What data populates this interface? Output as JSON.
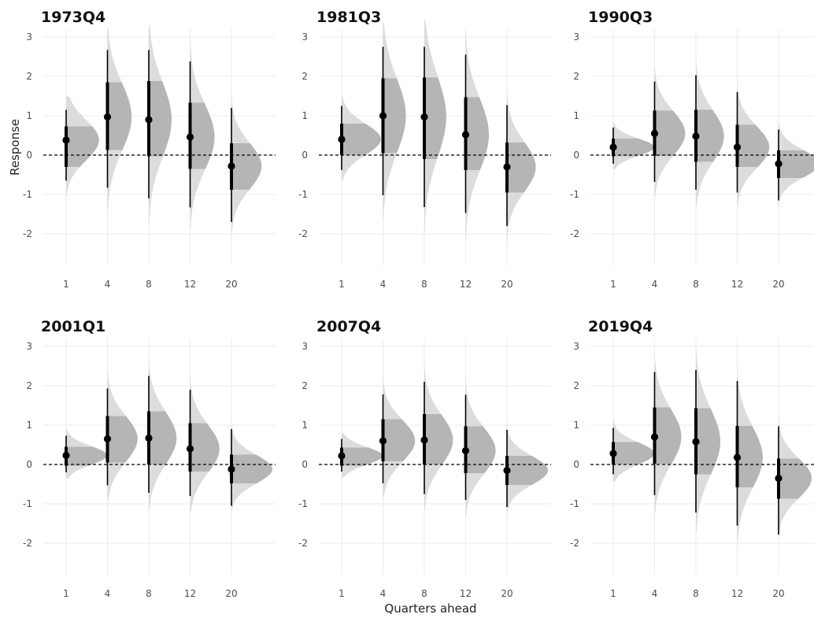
{
  "chart_data": {
    "type": "halfeye",
    "xlabel": "Quarters ahead",
    "ylabel": "Response",
    "x_categories": [
      "1",
      "4",
      "8",
      "12",
      "20"
    ],
    "ylim": [
      -2.8,
      3.2
    ],
    "y_ticks": [
      3,
      2,
      1,
      0,
      -1,
      -2
    ],
    "reference_line": 0,
    "grid": true,
    "colors": {
      "outer_density": "#dcdcdc",
      "inner_density": "#b5b5b5",
      "point": "#000000",
      "grid": "#ebebeb",
      "zero_line": "#000000"
    },
    "panels": [
      {
        "title": "1973Q4",
        "points": [
          {
            "x": "1",
            "median": 0.38,
            "inner": [
              -0.3,
              0.73
            ],
            "outer": [
              -0.65,
              1.15
            ]
          },
          {
            "x": "4",
            "median": 0.97,
            "inner": [
              0.13,
              1.85
            ],
            "outer": [
              -0.83,
              2.67
            ]
          },
          {
            "x": "8",
            "median": 0.9,
            "inner": [
              -0.03,
              1.88
            ],
            "outer": [
              -1.1,
              2.67
            ]
          },
          {
            "x": "12",
            "median": 0.46,
            "inner": [
              -0.35,
              1.33
            ],
            "outer": [
              -1.33,
              2.38
            ]
          },
          {
            "x": "20",
            "median": -0.28,
            "inner": [
              -0.88,
              0.3
            ],
            "outer": [
              -1.7,
              1.2
            ]
          }
        ]
      },
      {
        "title": "1981Q3",
        "points": [
          {
            "x": "1",
            "median": 0.4,
            "inner": [
              0.0,
              0.8
            ],
            "outer": [
              -0.38,
              1.25
            ]
          },
          {
            "x": "4",
            "median": 1.0,
            "inner": [
              0.05,
              1.95
            ],
            "outer": [
              -1.02,
              2.75
            ]
          },
          {
            "x": "8",
            "median": 0.97,
            "inner": [
              -0.1,
              1.97
            ],
            "outer": [
              -1.32,
              2.75
            ]
          },
          {
            "x": "12",
            "median": 0.52,
            "inner": [
              -0.38,
              1.47
            ],
            "outer": [
              -1.47,
              2.55
            ]
          },
          {
            "x": "20",
            "median": -0.3,
            "inner": [
              -0.95,
              0.32
            ],
            "outer": [
              -1.8,
              1.27
            ]
          }
        ]
      },
      {
        "title": "1990Q3",
        "points": [
          {
            "x": "1",
            "median": 0.2,
            "inner": [
              -0.03,
              0.42
            ],
            "outer": [
              -0.22,
              0.7
            ]
          },
          {
            "x": "4",
            "median": 0.55,
            "inner": [
              -0.02,
              1.13
            ],
            "outer": [
              -0.68,
              1.87
            ]
          },
          {
            "x": "8",
            "median": 0.48,
            "inner": [
              -0.17,
              1.15
            ],
            "outer": [
              -0.88,
              2.03
            ]
          },
          {
            "x": "12",
            "median": 0.2,
            "inner": [
              -0.3,
              0.77
            ],
            "outer": [
              -0.95,
              1.6
            ]
          },
          {
            "x": "20",
            "median": -0.22,
            "inner": [
              -0.58,
              0.12
            ],
            "outer": [
              -1.15,
              0.65
            ]
          }
        ]
      },
      {
        "title": "2001Q1",
        "points": [
          {
            "x": "1",
            "median": 0.23,
            "inner": [
              -0.03,
              0.45
            ],
            "outer": [
              -0.2,
              0.73
            ]
          },
          {
            "x": "4",
            "median": 0.65,
            "inner": [
              0.05,
              1.23
            ],
            "outer": [
              -0.53,
              1.93
            ]
          },
          {
            "x": "8",
            "median": 0.67,
            "inner": [
              0.0,
              1.35
            ],
            "outer": [
              -0.72,
              2.25
            ]
          },
          {
            "x": "12",
            "median": 0.4,
            "inner": [
              -0.18,
              1.05
            ],
            "outer": [
              -0.8,
              1.9
            ]
          },
          {
            "x": "20",
            "median": -0.12,
            "inner": [
              -0.48,
              0.25
            ],
            "outer": [
              -1.05,
              0.9
            ]
          }
        ]
      },
      {
        "title": "2007Q4",
        "points": [
          {
            "x": "1",
            "median": 0.22,
            "inner": [
              -0.03,
              0.43
            ],
            "outer": [
              -0.18,
              0.65
            ]
          },
          {
            "x": "4",
            "median": 0.6,
            "inner": [
              0.08,
              1.15
            ],
            "outer": [
              -0.48,
              1.78
            ]
          },
          {
            "x": "8",
            "median": 0.62,
            "inner": [
              0.0,
              1.28
            ],
            "outer": [
              -0.75,
              2.1
            ]
          },
          {
            "x": "12",
            "median": 0.35,
            "inner": [
              -0.22,
              0.97
            ],
            "outer": [
              -0.9,
              1.77
            ]
          },
          {
            "x": "20",
            "median": -0.15,
            "inner": [
              -0.52,
              0.22
            ],
            "outer": [
              -1.08,
              0.88
            ]
          }
        ]
      },
      {
        "title": "2019Q4",
        "points": [
          {
            "x": "1",
            "median": 0.28,
            "inner": [
              0.0,
              0.57
            ],
            "outer": [
              -0.25,
              0.93
            ]
          },
          {
            "x": "4",
            "median": 0.7,
            "inner": [
              0.02,
              1.45
            ],
            "outer": [
              -0.78,
              2.35
            ]
          },
          {
            "x": "8",
            "median": 0.58,
            "inner": [
              -0.25,
              1.43
            ],
            "outer": [
              -1.22,
              2.4
            ]
          },
          {
            "x": "12",
            "median": 0.18,
            "inner": [
              -0.58,
              0.98
            ],
            "outer": [
              -1.55,
              2.12
            ]
          },
          {
            "x": "20",
            "median": -0.35,
            "inner": [
              -0.87,
              0.15
            ],
            "outer": [
              -1.78,
              0.97
            ]
          }
        ]
      }
    ]
  }
}
